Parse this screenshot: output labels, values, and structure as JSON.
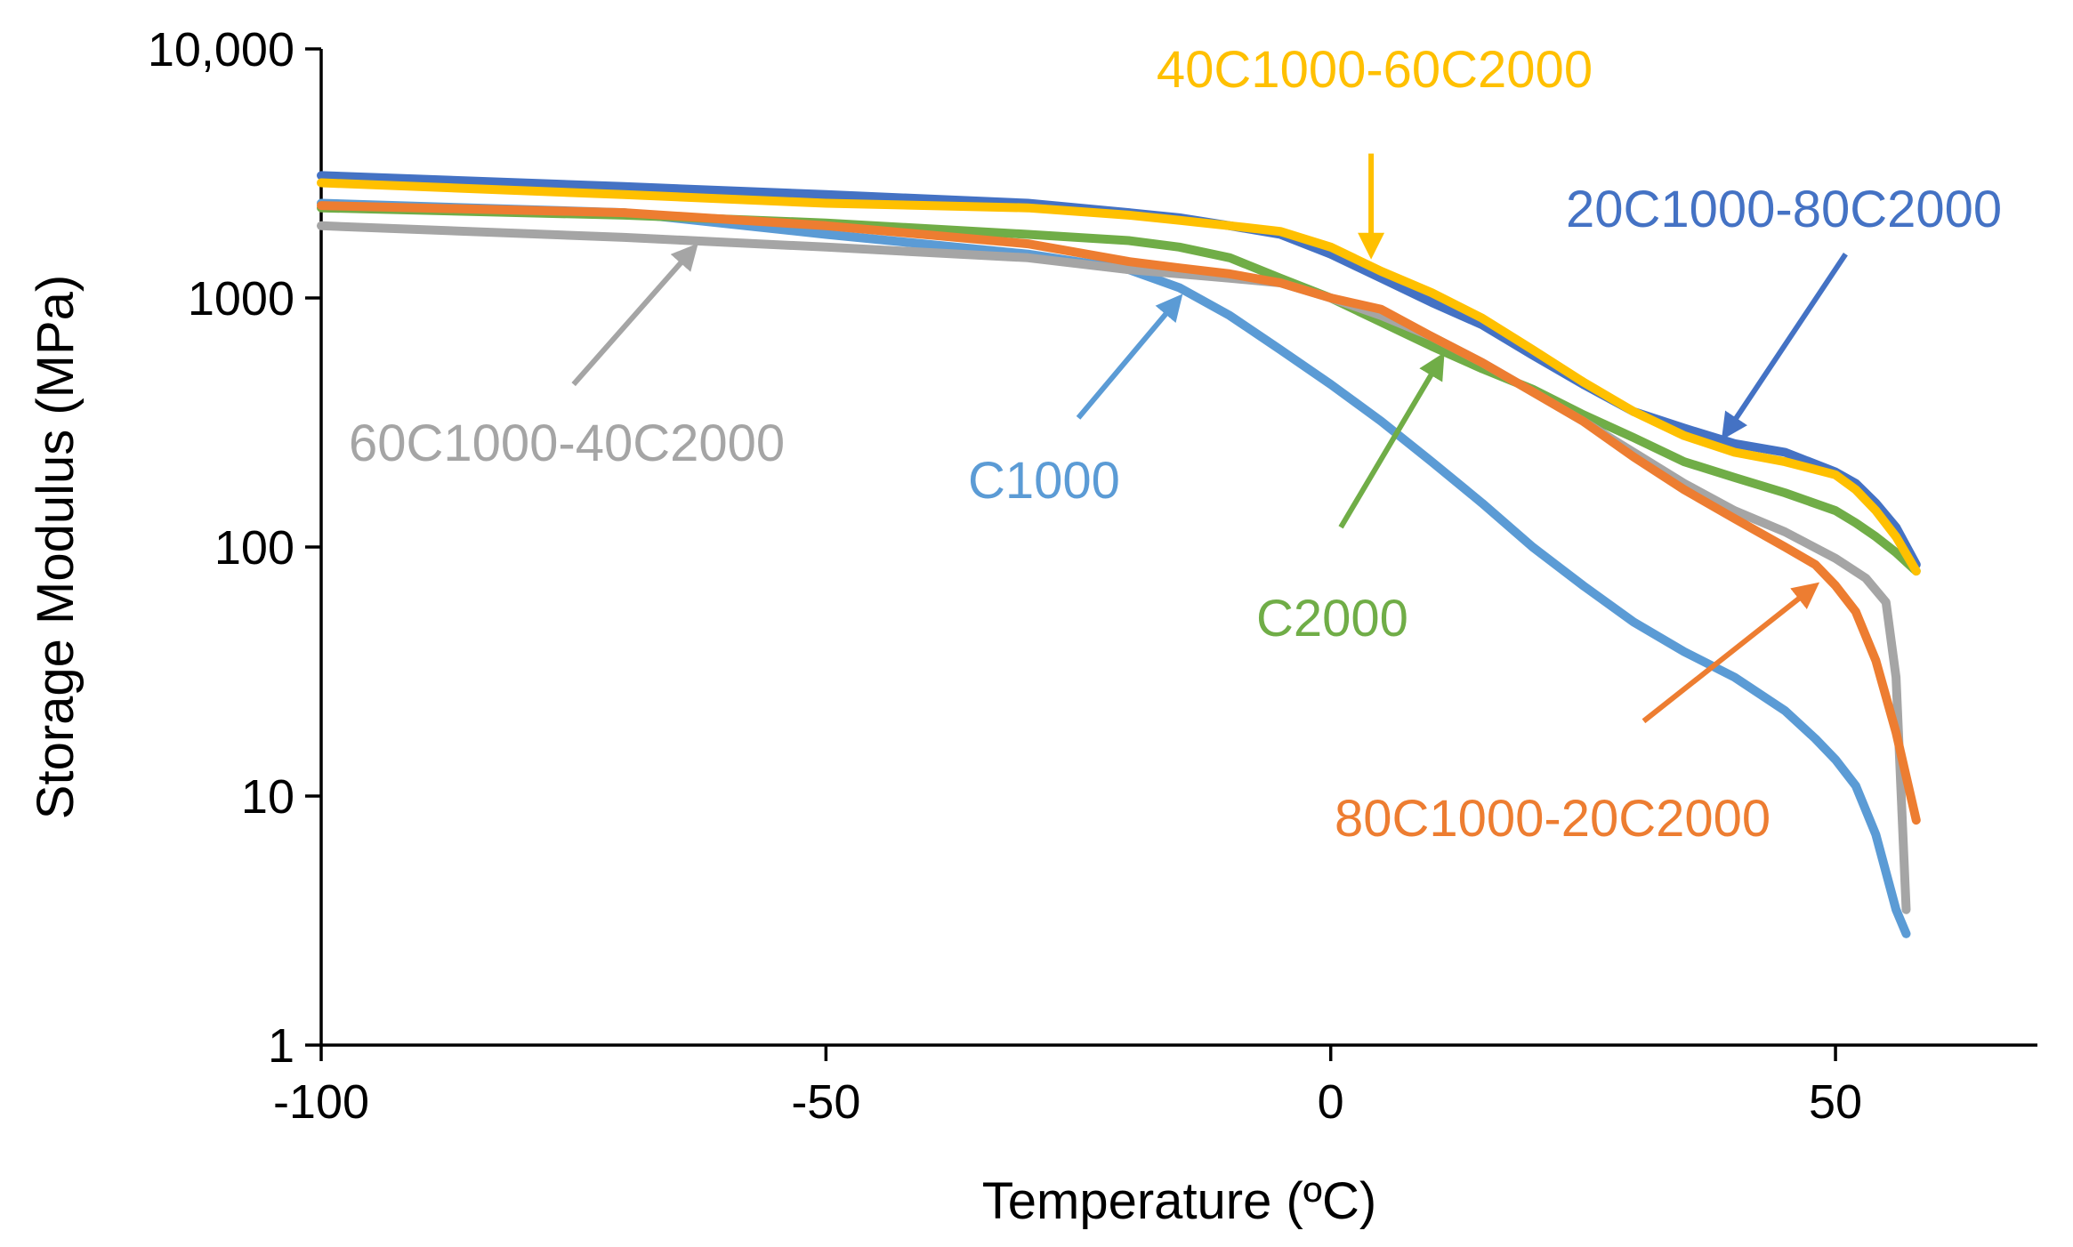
{
  "chart_data": {
    "type": "line",
    "title": "",
    "xlabel": "Temperature  (ºC)",
    "ylabel": "Storage Modulus  (MPa)",
    "xlim": [
      -100,
      70
    ],
    "ylim": [
      1,
      10000
    ],
    "y_scale": "log",
    "grid": false,
    "x_ticks": [
      {
        "value": -100,
        "label": "-100"
      },
      {
        "value": -50,
        "label": "-50"
      },
      {
        "value": 0,
        "label": "0"
      },
      {
        "value": 50,
        "label": "50"
      }
    ],
    "y_ticks": [
      {
        "value": 1,
        "label": "1"
      },
      {
        "value": 10,
        "label": "10"
      },
      {
        "value": 100,
        "label": "100"
      },
      {
        "value": 1000,
        "label": "1000"
      },
      {
        "value": 10000,
        "label": "10,000"
      }
    ],
    "series": [
      {
        "name": "C1000",
        "color": "#5B9BD5",
        "x": [
          -100,
          -70,
          -50,
          -30,
          -20,
          -15,
          -10,
          -5,
          0,
          5,
          10,
          15,
          20,
          25,
          30,
          35,
          40,
          45,
          48,
          50,
          52,
          54,
          56,
          57
        ],
        "y": [
          2400,
          2200,
          1800,
          1500,
          1300,
          1100,
          850,
          620,
          450,
          320,
          220,
          150,
          100,
          70,
          50,
          38,
          30,
          22,
          17,
          14,
          11,
          7,
          3.5,
          2.8
        ]
      },
      {
        "name": "C2000",
        "color": "#70AD47",
        "x": [
          -100,
          -70,
          -50,
          -30,
          -20,
          -15,
          -10,
          -5,
          0,
          5,
          10,
          15,
          20,
          25,
          30,
          35,
          40,
          45,
          50,
          52,
          54,
          56,
          58
        ],
        "y": [
          2300,
          2150,
          2000,
          1800,
          1700,
          1600,
          1450,
          1200,
          1000,
          800,
          640,
          520,
          430,
          340,
          275,
          220,
          190,
          165,
          140,
          125,
          110,
          95,
          80
        ]
      },
      {
        "name": "20C1000-80C2000",
        "color": "#4472C4",
        "x": [
          -100,
          -70,
          -50,
          -30,
          -20,
          -15,
          -10,
          -5,
          0,
          5,
          10,
          15,
          20,
          25,
          30,
          35,
          40,
          45,
          50,
          52,
          54,
          56,
          58
        ],
        "y": [
          3100,
          2800,
          2600,
          2400,
          2200,
          2100,
          1950,
          1800,
          1500,
          1200,
          960,
          780,
          590,
          450,
          350,
          300,
          260,
          240,
          200,
          180,
          150,
          120,
          85
        ]
      },
      {
        "name": "40C1000-60C2000",
        "color": "#FFC000",
        "x": [
          -100,
          -70,
          -50,
          -30,
          -20,
          -15,
          -10,
          -5,
          0,
          5,
          10,
          15,
          20,
          25,
          30,
          35,
          40,
          45,
          50,
          52,
          54,
          56,
          58
        ],
        "y": [
          2900,
          2600,
          2400,
          2300,
          2150,
          2050,
          1950,
          1850,
          1600,
          1280,
          1050,
          830,
          620,
          460,
          350,
          280,
          240,
          220,
          195,
          170,
          140,
          110,
          80
        ]
      },
      {
        "name": "60C1000-40C2000",
        "color": "#A5A5A5",
        "x": [
          -100,
          -70,
          -50,
          -30,
          -20,
          -15,
          -10,
          -5,
          0,
          5,
          10,
          15,
          20,
          25,
          30,
          35,
          40,
          45,
          50,
          53,
          55,
          56,
          57
        ],
        "y": [
          1950,
          1750,
          1600,
          1450,
          1300,
          1250,
          1200,
          1150,
          1000,
          850,
          700,
          550,
          420,
          320,
          240,
          180,
          140,
          115,
          90,
          75,
          60,
          30,
          3.5
        ]
      },
      {
        "name": "80C1000-20C2000",
        "color": "#ED7D31",
        "x": [
          -100,
          -70,
          -50,
          -30,
          -20,
          -15,
          -10,
          -5,
          0,
          5,
          10,
          15,
          20,
          25,
          30,
          35,
          40,
          45,
          48,
          50,
          52,
          54,
          56,
          58
        ],
        "y": [
          2350,
          2200,
          1950,
          1650,
          1400,
          1320,
          1250,
          1150,
          1000,
          900,
          700,
          550,
          420,
          320,
          230,
          170,
          130,
          100,
          85,
          70,
          55,
          35,
          18,
          8
        ]
      }
    ],
    "annotations": [
      {
        "text": "40C1000-60C2000",
        "series": "40C1000-60C2000",
        "color": "#FFC000",
        "tail": [
          4,
          3800
        ],
        "head": [
          4,
          1500
        ]
      },
      {
        "text": "20C1000-80C2000",
        "series": "20C1000-80C2000",
        "color": "#4472C4",
        "tail": [
          51,
          1500
        ],
        "head": [
          39,
          280
        ]
      },
      {
        "text": "60C1000-40C2000",
        "series": "60C1000-40C2000",
        "color": "#A5A5A5",
        "tail": [
          -75,
          450
        ],
        "head": [
          -63,
          1600
        ]
      },
      {
        "text": "C1000",
        "series": "C1000",
        "color": "#5B9BD5",
        "tail": [
          -25,
          330
        ],
        "head": [
          -15,
          1000
        ]
      },
      {
        "text": "C2000",
        "series": "C2000",
        "color": "#70AD47",
        "tail": [
          1,
          120
        ],
        "head": [
          11,
          580
        ]
      },
      {
        "text": "80C1000-20C2000",
        "series": "80C1000-20C2000",
        "color": "#ED7D31",
        "tail": [
          31,
          20
        ],
        "head": [
          48,
          70
        ]
      }
    ]
  }
}
